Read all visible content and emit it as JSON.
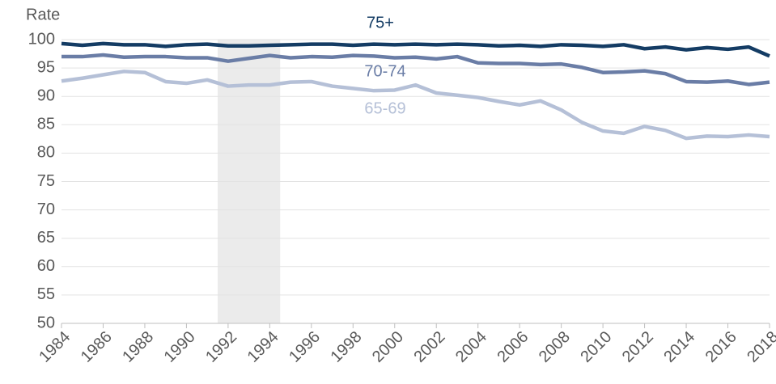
{
  "chart_data": {
    "type": "line",
    "y_label": "Rate",
    "x": [
      1984,
      1985,
      1986,
      1987,
      1988,
      1989,
      1990,
      1991,
      1992,
      1993,
      1994,
      1995,
      1996,
      1997,
      1998,
      1999,
      2000,
      2001,
      2002,
      2003,
      2004,
      2005,
      2006,
      2007,
      2008,
      2009,
      2010,
      2011,
      2012,
      2013,
      2014,
      2015,
      2016,
      2017,
      2018
    ],
    "series": [
      {
        "name": "75+",
        "color": "#143c64",
        "values": [
          99.3,
          99.0,
          99.3,
          99.1,
          99.1,
          98.8,
          99.1,
          99.2,
          98.9,
          98.9,
          99.0,
          99.1,
          99.2,
          99.2,
          99.0,
          99.2,
          99.1,
          99.2,
          99.1,
          99.2,
          99.1,
          98.9,
          99.0,
          98.8,
          99.1,
          99.0,
          98.8,
          99.1,
          98.4,
          98.7,
          98.2,
          98.6,
          98.3,
          98.7,
          97.1
        ]
      },
      {
        "name": "70-74",
        "color": "#6a7da6",
        "values": [
          97.0,
          97.0,
          97.3,
          96.9,
          97.0,
          97.0,
          96.8,
          96.8,
          96.2,
          96.7,
          97.2,
          96.8,
          97.0,
          96.9,
          97.2,
          97.1,
          96.8,
          96.9,
          96.6,
          97.0,
          95.9,
          95.8,
          95.8,
          95.6,
          95.7,
          95.1,
          94.2,
          94.3,
          94.5,
          94.0,
          92.6,
          92.5,
          92.7,
          92.1,
          92.5
        ]
      },
      {
        "name": "65-69",
        "color": "#b5c0d7",
        "values": [
          92.7,
          93.2,
          93.8,
          94.4,
          94.2,
          92.6,
          92.3,
          92.9,
          91.8,
          92.0,
          92.0,
          92.5,
          92.6,
          91.8,
          91.4,
          91.0,
          91.1,
          92.0,
          90.6,
          90.2,
          89.8,
          89.1,
          88.5,
          89.2,
          87.6,
          85.4,
          83.9,
          83.5,
          84.7,
          84.0,
          82.6,
          83.0,
          82.9,
          83.2,
          82.9
        ]
      }
    ],
    "shaded_range": [
      1991.5,
      1994.5
    ],
    "xlim": [
      1984,
      2018
    ],
    "xticks": [
      1984,
      1986,
      1988,
      1990,
      1992,
      1994,
      1996,
      1998,
      2000,
      2002,
      2004,
      2006,
      2008,
      2010,
      2012,
      2014,
      2016,
      2018
    ],
    "ylim": [
      50,
      100
    ],
    "yticks": [
      50,
      55,
      60,
      65,
      70,
      75,
      80,
      85,
      90,
      95,
      100
    ],
    "grid": true
  }
}
